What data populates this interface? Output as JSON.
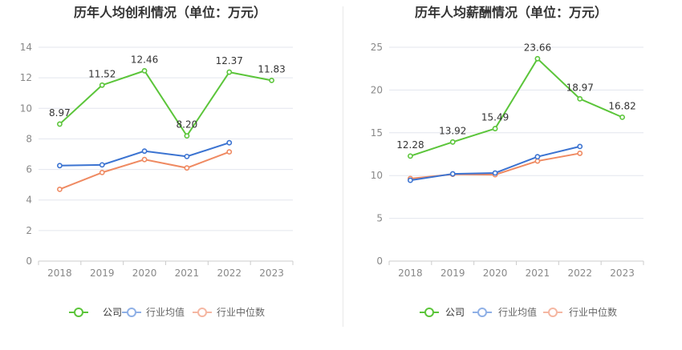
{
  "charts": [
    {
      "title": "历年人均创利情况（单位：万元）",
      "chart_data": {
        "type": "line",
        "categories": [
          "2018",
          "2019",
          "2020",
          "2021",
          "2022",
          "2023"
        ],
        "ylim": [
          0,
          14
        ],
        "yticks": [
          0,
          2,
          4,
          6,
          8,
          10,
          12,
          14
        ],
        "grid": true,
        "legend_position": "bottom-center",
        "series": [
          {
            "name": "公司",
            "values": [
              8.97,
              11.52,
              12.46,
              8.2,
              12.37,
              11.83
            ],
            "labels": [
              "8.97",
              "11.52",
              "12.46",
              "8.20",
              "12.37",
              "11.83"
            ],
            "color": "#5bc53a"
          },
          {
            "name": "行业均值",
            "values": [
              6.25,
              6.3,
              7.2,
              6.85,
              7.75,
              null
            ],
            "color": "#3b73d1"
          },
          {
            "name": "行业中位数",
            "values": [
              4.7,
              5.8,
              6.65,
              6.1,
              7.15,
              null
            ],
            "color": "#ef8a62"
          }
        ]
      }
    },
    {
      "title": "历年人均薪酬情况（单位：万元）",
      "chart_data": {
        "type": "line",
        "categories": [
          "2018",
          "2019",
          "2020",
          "2021",
          "2022",
          "2023"
        ],
        "ylim": [
          0,
          25
        ],
        "yticks": [
          0,
          5,
          10,
          15,
          20,
          25
        ],
        "grid": true,
        "legend_position": "bottom-center",
        "series": [
          {
            "name": "公司",
            "values": [
              12.28,
              13.92,
              15.49,
              23.66,
              18.97,
              16.82
            ],
            "labels": [
              "12.28",
              "13.92",
              "15.49",
              "23.66",
              "18.97",
              "16.82"
            ],
            "color": "#5bc53a"
          },
          {
            "name": "行业均值",
            "values": [
              9.45,
              10.2,
              10.3,
              12.2,
              13.4,
              null
            ],
            "color": "#3b73d1"
          },
          {
            "name": "行业中位数",
            "values": [
              9.65,
              10.15,
              10.1,
              11.7,
              12.6,
              null
            ],
            "color": "#ef8a62"
          }
        ]
      }
    }
  ],
  "legend_colors": {
    "公司": "#5bc53a",
    "行业均值": "#8fb0e6",
    "行业中位数": "#f5b7a2"
  },
  "axis_color": "#cccccc",
  "grid_color": "#e3e6ee",
  "tick_color": "#888888"
}
